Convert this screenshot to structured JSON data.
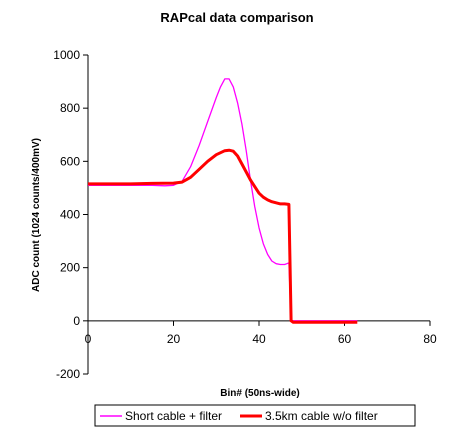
{
  "chart_data": {
    "type": "line",
    "title": "RAPcal data comparison",
    "xlabel": "Bin# (50ns-wide)",
    "ylabel": "ADC count (1024 counts/400mV)",
    "xlim": [
      0,
      80
    ],
    "ylim": [
      -200,
      1000
    ],
    "x_ticks": [
      0,
      20,
      40,
      60,
      80
    ],
    "y_ticks": [
      -200,
      0,
      200,
      400,
      600,
      800,
      1000
    ],
    "grid": false,
    "legend_position": "bottom",
    "series": [
      {
        "name": "Short cable + filter",
        "color": "#ff00ff",
        "points": [
          [
            0,
            510
          ],
          [
            5,
            510
          ],
          [
            10,
            510
          ],
          [
            15,
            510
          ],
          [
            18,
            508
          ],
          [
            20,
            510
          ],
          [
            22,
            525
          ],
          [
            24,
            580
          ],
          [
            26,
            660
          ],
          [
            28,
            750
          ],
          [
            30,
            840
          ],
          [
            31,
            880
          ],
          [
            32,
            910
          ],
          [
            33,
            910
          ],
          [
            34,
            880
          ],
          [
            35,
            820
          ],
          [
            36,
            740
          ],
          [
            37,
            640
          ],
          [
            38,
            530
          ],
          [
            39,
            430
          ],
          [
            40,
            350
          ],
          [
            41,
            290
          ],
          [
            42,
            250
          ],
          [
            43,
            225
          ],
          [
            44,
            215
          ],
          [
            45,
            212
          ],
          [
            46,
            212
          ],
          [
            46.5,
            215
          ],
          [
            47,
            218
          ],
          [
            47.5,
            0
          ],
          [
            48,
            0
          ],
          [
            55,
            0
          ],
          [
            63,
            0
          ]
        ]
      },
      {
        "name": "3.5km cable w/o filter",
        "color": "#ff0000",
        "points": [
          [
            0,
            515
          ],
          [
            5,
            515
          ],
          [
            10,
            515
          ],
          [
            15,
            517
          ],
          [
            20,
            518
          ],
          [
            22,
            522
          ],
          [
            24,
            540
          ],
          [
            26,
            570
          ],
          [
            28,
            600
          ],
          [
            30,
            625
          ],
          [
            32,
            640
          ],
          [
            33,
            642
          ],
          [
            34,
            638
          ],
          [
            35,
            620
          ],
          [
            36,
            590
          ],
          [
            37,
            560
          ],
          [
            38,
            530
          ],
          [
            39,
            505
          ],
          [
            40,
            480
          ],
          [
            41,
            465
          ],
          [
            42,
            455
          ],
          [
            43,
            448
          ],
          [
            44,
            444
          ],
          [
            45,
            440
          ],
          [
            46,
            440
          ],
          [
            47,
            438
          ],
          [
            47.5,
            0
          ],
          [
            48,
            -5
          ],
          [
            55,
            -5
          ],
          [
            63,
            -5
          ]
        ]
      }
    ]
  }
}
